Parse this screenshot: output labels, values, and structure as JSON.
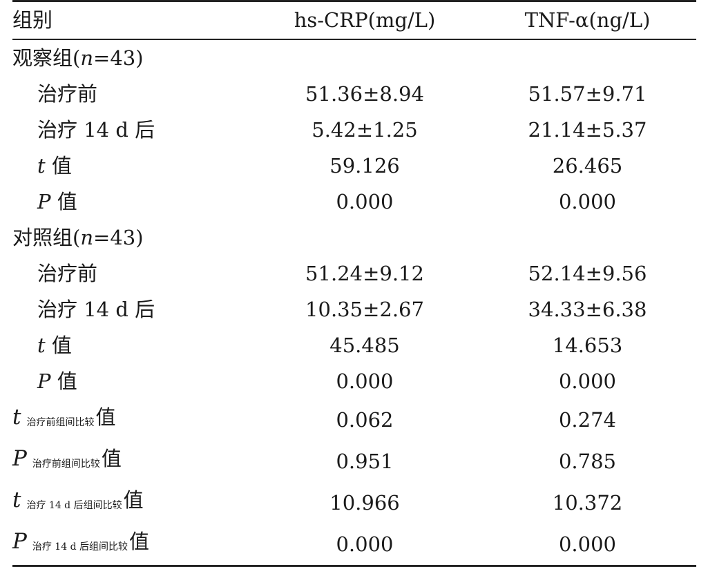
{
  "header": {
    "col1": "组别",
    "col2": "hs-CRP(mg/L)",
    "col3": "TNF-α(ng/L)"
  },
  "groups": [
    {
      "label_prefix": "观察组(",
      "label_n": "n",
      "label_suffix": "=43)",
      "rows": [
        {
          "label": "治疗前",
          "crp": "51.36±8.94",
          "tnf": "51.57±9.71"
        },
        {
          "label": "治疗 14 d 后",
          "crp": "5.42±1.25",
          "tnf": "21.14±5.37"
        },
        {
          "var": "t",
          "label": " 值",
          "crp": "59.126",
          "tnf": "26.465"
        },
        {
          "var": "P",
          "label": " 值",
          "crp": "0.000",
          "tnf": "0.000"
        }
      ]
    },
    {
      "label_prefix": "对照组(",
      "label_n": "n",
      "label_suffix": "=43)",
      "rows": [
        {
          "label": "治疗前",
          "crp": "51.24±9.12",
          "tnf": "52.14±9.56"
        },
        {
          "label": "治疗 14 d 后",
          "crp": "10.35±2.67",
          "tnf": "34.33±6.38"
        },
        {
          "var": "t",
          "label": " 值",
          "crp": "45.485",
          "tnf": "14.653"
        },
        {
          "var": "P",
          "label": " 值",
          "crp": "0.000",
          "tnf": "0.000"
        }
      ]
    }
  ],
  "comparisons": [
    {
      "var": "t",
      "sub": "治疗前组间比较",
      "suffix": "值",
      "crp": "0.062",
      "tnf": "0.274"
    },
    {
      "var": "P",
      "sub": "治疗前组间比较",
      "suffix": "值",
      "crp": "0.951",
      "tnf": "0.785"
    },
    {
      "var": "t",
      "sub": "治疗  14 d 后组间比较",
      "suffix": "值",
      "crp": "10.966",
      "tnf": "10.372"
    },
    {
      "var": "P",
      "sub": "治疗  14 d 后组间比较",
      "suffix": "值",
      "crp": "0.000",
      "tnf": "0.000"
    }
  ]
}
